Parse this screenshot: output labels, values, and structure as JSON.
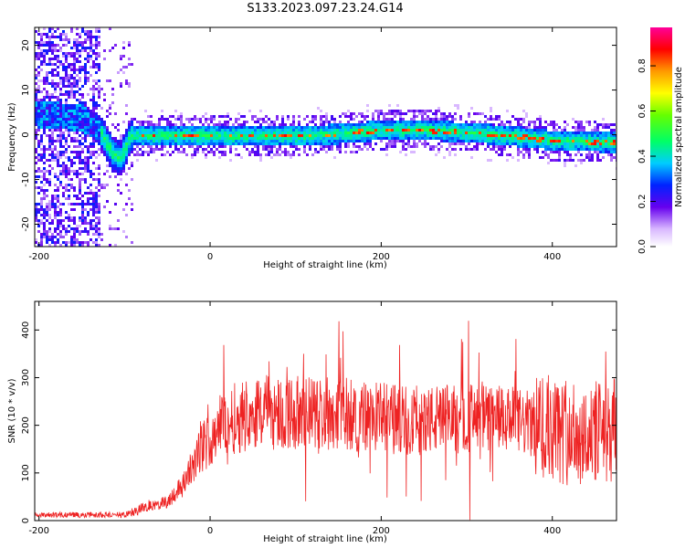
{
  "title": "S133.2023.097.23.24.G14",
  "colors": {
    "snr_line": "#ee2222",
    "frame": "#000000",
    "background": "#ffffff"
  },
  "chart_data": [
    {
      "type": "heatmap",
      "xlabel": "Height of straight line (km)",
      "ylabel": "Frequency (Hz)",
      "xlim": [
        -205,
        475
      ],
      "ylim": [
        -25,
        24
      ],
      "x_ticks": [
        -200,
        0,
        200,
        400
      ],
      "y_ticks": [
        -20,
        -10,
        0,
        10,
        20
      ],
      "colorbar": {
        "label": "Normalized spectral amplitude",
        "range": [
          0.0,
          0.97
        ],
        "ticks": [
          0.0,
          0.2,
          0.4,
          0.6,
          0.8
        ],
        "colormap": "rainbow"
      },
      "centerline": [
        [
          -205,
          5
        ],
        [
          -150,
          4
        ],
        [
          -130,
          1
        ],
        [
          -115,
          -4
        ],
        [
          -105,
          -5
        ],
        [
          -95,
          0
        ],
        [
          0,
          0
        ],
        [
          50,
          0
        ],
        [
          100,
          0
        ],
        [
          150,
          0.5
        ],
        [
          200,
          1.3
        ],
        [
          250,
          1.3
        ],
        [
          300,
          0.8
        ],
        [
          350,
          0
        ],
        [
          400,
          -1
        ],
        [
          475,
          -1.5
        ]
      ]
    },
    {
      "type": "line",
      "xlabel": "Height of straight line (km)",
      "ylabel": "SNR (10 * v/v)",
      "xlim": [
        -205,
        475
      ],
      "ylim": [
        0,
        460
      ],
      "x_ticks": [
        -200,
        0,
        200,
        400
      ],
      "y_ticks": [
        0,
        100,
        200,
        300,
        400
      ],
      "envelope": [
        [
          -205,
          12
        ],
        [
          -100,
          12
        ],
        [
          -80,
          25
        ],
        [
          -50,
          40
        ],
        [
          -30,
          80
        ],
        [
          -10,
          150
        ],
        [
          10,
          200
        ],
        [
          50,
          230
        ],
        [
          100,
          225
        ],
        [
          150,
          225
        ],
        [
          200,
          215
        ],
        [
          250,
          210
        ],
        [
          300,
          215
        ],
        [
          350,
          210
        ],
        [
          380,
          200
        ],
        [
          400,
          190
        ],
        [
          430,
          180
        ],
        [
          475,
          190
        ]
      ]
    }
  ]
}
